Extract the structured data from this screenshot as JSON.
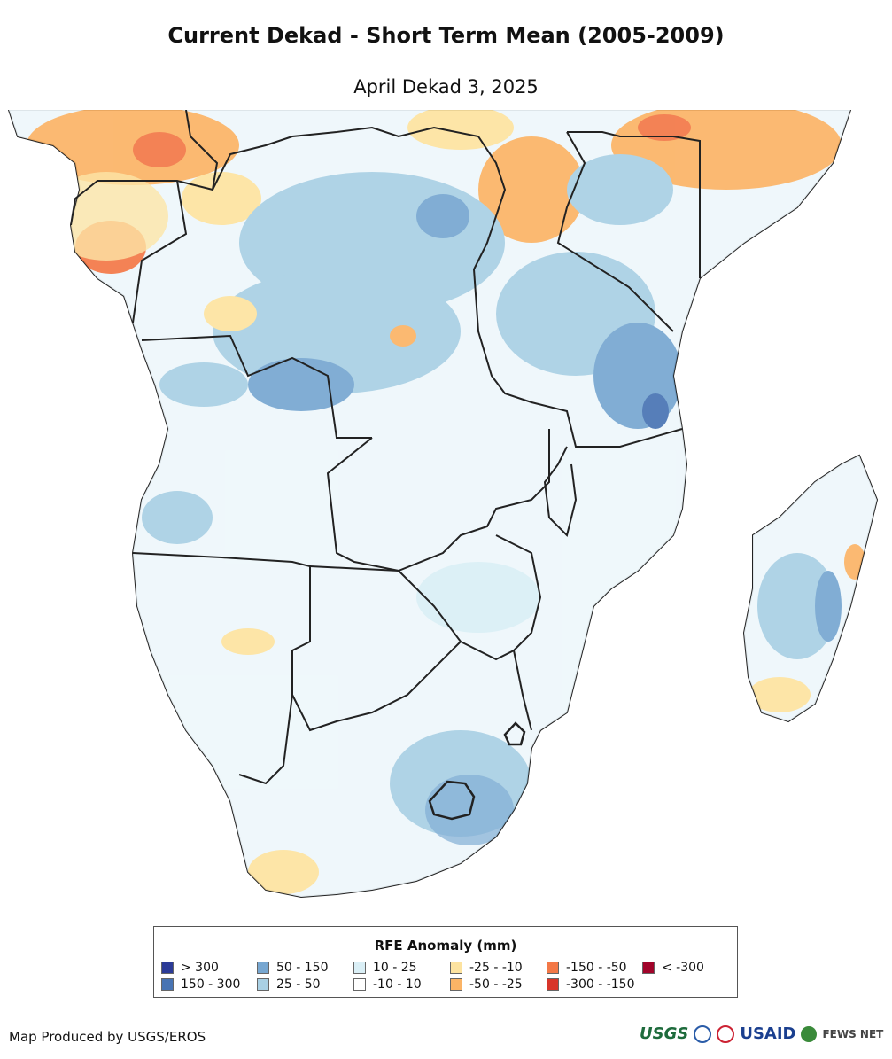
{
  "title": "Current Dekad - Short Term Mean (2005-2009)",
  "subtitle": "April Dekad 3, 2025",
  "legend": {
    "title": "RFE Anomaly (mm)",
    "items": [
      {
        "label": "> 300",
        "color": "#2c3b97"
      },
      {
        "label": "150 - 300",
        "color": "#4874b3"
      },
      {
        "label": "50 - 150",
        "color": "#77a7d1"
      },
      {
        "label": "25 - 50",
        "color": "#a9d0e4"
      },
      {
        "label": "10 - 25",
        "color": "#daeff6"
      },
      {
        "label": "-10 - 10",
        "color": "#ffffff"
      },
      {
        "label": "-25 - -10",
        "color": "#fde3a0"
      },
      {
        "label": "-50 - -25",
        "color": "#fbb466"
      },
      {
        "label": "-150 - -50",
        "color": "#f37847"
      },
      {
        "label": "-300 - -150",
        "color": "#d8352a"
      },
      {
        "label": "< -300",
        "color": "#a1042a"
      }
    ]
  },
  "credit": "Map Produced by USGS/EROS",
  "logos": {
    "usgs": "USGS",
    "usaid": "USAID",
    "fews": "FEWS NET"
  }
}
